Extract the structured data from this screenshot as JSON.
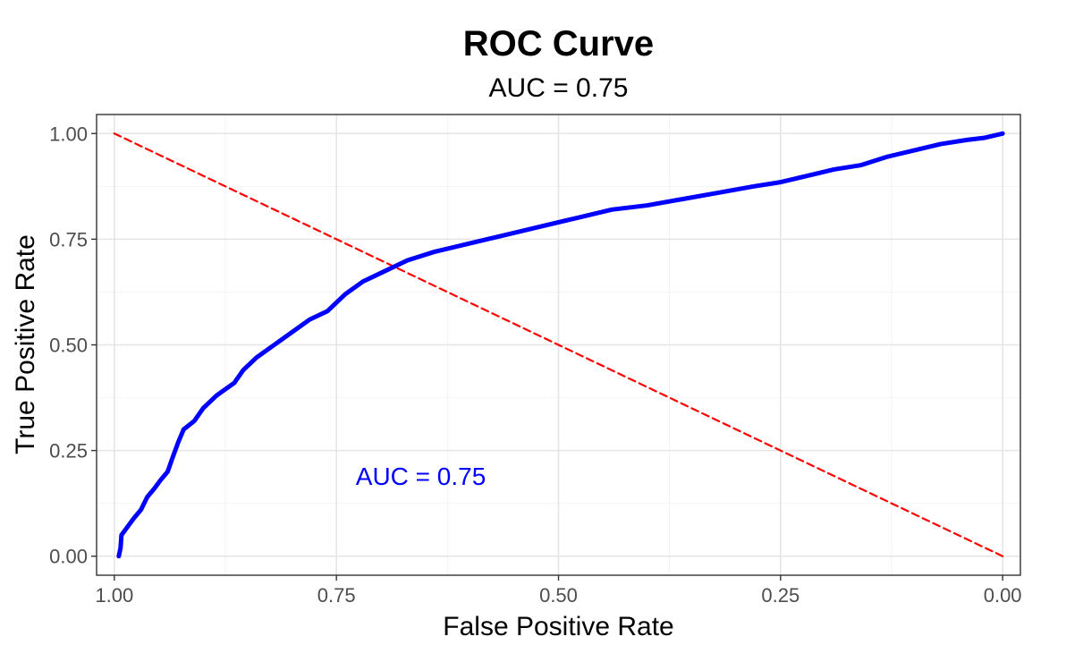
{
  "chart_data": {
    "type": "line",
    "title": "ROC Curve",
    "subtitle": "AUC = 0.75",
    "xlabel": "False Positive Rate",
    "ylabel": "True Positive Rate",
    "x_reversed": true,
    "xlim": [
      1.02,
      -0.02
    ],
    "ylim": [
      -0.045,
      1.045
    ],
    "x_ticks": [
      1.0,
      0.75,
      0.5,
      0.25,
      0.0
    ],
    "x_tick_labels": [
      "1.00",
      "0.75",
      "0.50",
      "0.25",
      "0.00"
    ],
    "y_ticks": [
      0.0,
      0.25,
      0.5,
      0.75,
      1.0
    ],
    "y_tick_labels": [
      "0.00",
      "0.25",
      "0.50",
      "0.75",
      "1.00"
    ],
    "grid": true,
    "legend": "none",
    "annotations": [
      {
        "text": "AUC = 0.75",
        "x": 0.655,
        "y": 0.19,
        "color": "#0000ff"
      }
    ],
    "series": [
      {
        "color": "#0000ff",
        "line_style": "solid",
        "points": [
          [
            0.995,
            0.0
          ],
          [
            0.993,
            0.02
          ],
          [
            0.992,
            0.05
          ],
          [
            0.985,
            0.07
          ],
          [
            0.978,
            0.09
          ],
          [
            0.97,
            0.11
          ],
          [
            0.963,
            0.14
          ],
          [
            0.955,
            0.16
          ],
          [
            0.948,
            0.18
          ],
          [
            0.94,
            0.2
          ],
          [
            0.935,
            0.23
          ],
          [
            0.928,
            0.27
          ],
          [
            0.922,
            0.3
          ],
          [
            0.91,
            0.32
          ],
          [
            0.9,
            0.35
          ],
          [
            0.885,
            0.38
          ],
          [
            0.865,
            0.41
          ],
          [
            0.855,
            0.44
          ],
          [
            0.84,
            0.47
          ],
          [
            0.82,
            0.5
          ],
          [
            0.8,
            0.53
          ],
          [
            0.78,
            0.56
          ],
          [
            0.76,
            0.58
          ],
          [
            0.74,
            0.62
          ],
          [
            0.72,
            0.65
          ],
          [
            0.7,
            0.67
          ],
          [
            0.67,
            0.7
          ],
          [
            0.64,
            0.72
          ],
          [
            0.6,
            0.74
          ],
          [
            0.56,
            0.76
          ],
          [
            0.52,
            0.78
          ],
          [
            0.48,
            0.8
          ],
          [
            0.44,
            0.82
          ],
          [
            0.4,
            0.83
          ],
          [
            0.36,
            0.845
          ],
          [
            0.32,
            0.86
          ],
          [
            0.28,
            0.875
          ],
          [
            0.25,
            0.885
          ],
          [
            0.22,
            0.9
          ],
          [
            0.19,
            0.915
          ],
          [
            0.16,
            0.925
          ],
          [
            0.13,
            0.945
          ],
          [
            0.1,
            0.96
          ],
          [
            0.07,
            0.975
          ],
          [
            0.04,
            0.985
          ],
          [
            0.02,
            0.99
          ],
          [
            0.0,
            1.0
          ]
        ]
      },
      {
        "color": "#ff0000",
        "line_style": "dashed",
        "points": [
          [
            0.0,
            0.0
          ],
          [
            1.0,
            1.0
          ]
        ]
      }
    ]
  }
}
